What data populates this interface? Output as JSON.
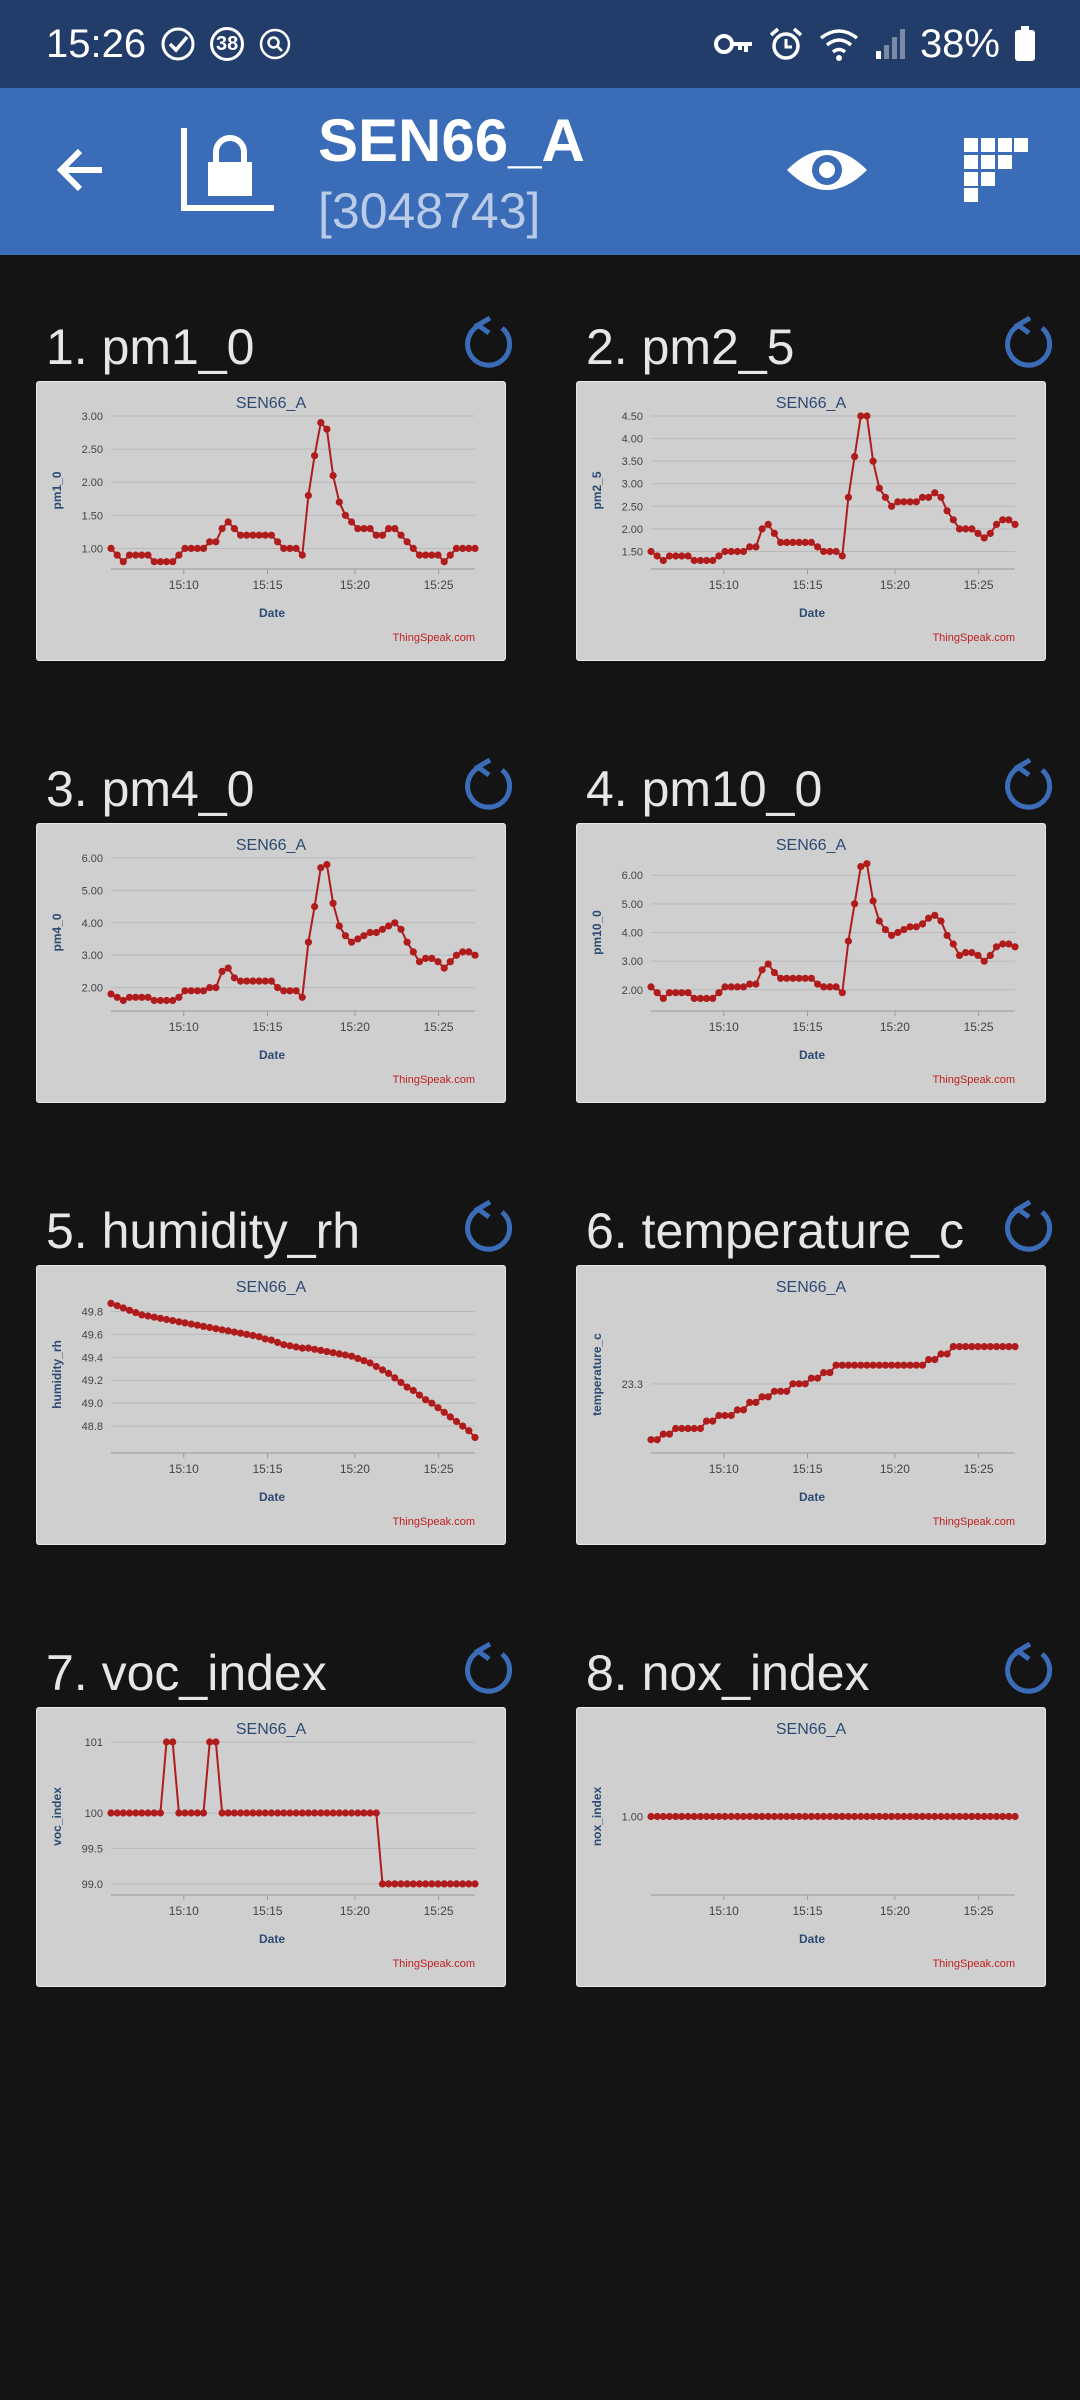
{
  "status_bar": {
    "time": "15:26",
    "notification_count": "38",
    "battery": "38%"
  },
  "app_bar": {
    "title": "SEN66_A",
    "channel_id": "[3048743]"
  },
  "colors": {
    "status_bar": "#233d6b",
    "app_bar": "#3b6cb7",
    "background": "#141414",
    "card": "#cfcfcf",
    "series": "#b01c1c",
    "chart_title": "#2c4a72",
    "credit": "#c02020"
  },
  "panels": [
    {
      "title": "1. pm1_0"
    },
    {
      "title": "2. pm2_5"
    },
    {
      "title": "3. pm4_0"
    },
    {
      "title": "4. pm10_0"
    },
    {
      "title": "5. humidity_rh"
    },
    {
      "title": "6. temperature_c"
    },
    {
      "title": "7. voc_index"
    },
    {
      "title": "8. nox_index"
    }
  ],
  "chart_data": [
    {
      "type": "line",
      "title": "SEN66_A",
      "xlabel": "Date",
      "ylabel": "pm1_0",
      "credit": "ThingSpeak.com",
      "xticks": [
        "15:10",
        "15:15",
        "15:20",
        "15:25"
      ],
      "yticks": [
        "1.00",
        "1.50",
        "2.00",
        "2.50",
        "3.00"
      ],
      "ylim": [
        0.75,
        3.0
      ],
      "values": [
        1.0,
        0.9,
        0.8,
        0.9,
        0.9,
        0.9,
        0.9,
        0.8,
        0.8,
        0.8,
        0.8,
        0.9,
        1.0,
        1.0,
        1.0,
        1.0,
        1.1,
        1.1,
        1.3,
        1.4,
        1.3,
        1.2,
        1.2,
        1.2,
        1.2,
        1.2,
        1.2,
        1.1,
        1.0,
        1.0,
        1.0,
        0.9,
        1.8,
        2.4,
        2.9,
        2.8,
        2.1,
        1.7,
        1.5,
        1.4,
        1.3,
        1.3,
        1.3,
        1.2,
        1.2,
        1.3,
        1.3,
        1.2,
        1.1,
        1.0,
        0.9,
        0.9,
        0.9,
        0.9,
        0.8,
        0.9,
        1.0,
        1.0,
        1.0,
        1.0
      ]
    },
    {
      "type": "line",
      "title": "SEN66_A",
      "xlabel": "Date",
      "ylabel": "pm2_5",
      "credit": "ThingSpeak.com",
      "xticks": [
        "15:10",
        "15:15",
        "15:20",
        "15:25"
      ],
      "yticks": [
        "1.50",
        "2.00",
        "2.50",
        "3.00",
        "3.50",
        "4.00",
        "4.50"
      ],
      "ylim": [
        1.2,
        4.5
      ],
      "values": [
        1.5,
        1.4,
        1.3,
        1.4,
        1.4,
        1.4,
        1.4,
        1.3,
        1.3,
        1.3,
        1.3,
        1.4,
        1.5,
        1.5,
        1.5,
        1.5,
        1.6,
        1.6,
        2.0,
        2.1,
        1.9,
        1.7,
        1.7,
        1.7,
        1.7,
        1.7,
        1.7,
        1.6,
        1.5,
        1.5,
        1.5,
        1.4,
        2.7,
        3.6,
        4.5,
        4.5,
        3.5,
        2.9,
        2.7,
        2.5,
        2.6,
        2.6,
        2.6,
        2.6,
        2.7,
        2.7,
        2.8,
        2.7,
        2.4,
        2.2,
        2.0,
        2.0,
        2.0,
        1.9,
        1.8,
        1.9,
        2.1,
        2.2,
        2.2,
        2.1
      ]
    },
    {
      "type": "line",
      "title": "SEN66_A",
      "xlabel": "Date",
      "ylabel": "pm4_0",
      "credit": "ThingSpeak.com",
      "xticks": [
        "15:10",
        "15:15",
        "15:20",
        "15:25"
      ],
      "yticks": [
        "2.00",
        "3.00",
        "4.00",
        "5.00",
        "6.00"
      ],
      "ylim": [
        1.4,
        6.0
      ],
      "values": [
        1.8,
        1.7,
        1.6,
        1.7,
        1.7,
        1.7,
        1.7,
        1.6,
        1.6,
        1.6,
        1.6,
        1.7,
        1.9,
        1.9,
        1.9,
        1.9,
        2.0,
        2.0,
        2.5,
        2.6,
        2.3,
        2.2,
        2.2,
        2.2,
        2.2,
        2.2,
        2.2,
        2.0,
        1.9,
        1.9,
        1.9,
        1.7,
        3.4,
        4.5,
        5.7,
        5.8,
        4.6,
        3.9,
        3.6,
        3.4,
        3.5,
        3.6,
        3.7,
        3.7,
        3.8,
        3.9,
        4.0,
        3.8,
        3.4,
        3.1,
        2.8,
        2.9,
        2.9,
        2.8,
        2.6,
        2.8,
        3.0,
        3.1,
        3.1,
        3.0
      ]
    },
    {
      "type": "line",
      "title": "SEN66_A",
      "xlabel": "Date",
      "ylabel": "pm10_0",
      "credit": "ThingSpeak.com",
      "xticks": [
        "15:10",
        "15:15",
        "15:20",
        "15:25"
      ],
      "yticks": [
        "2.00",
        "3.00",
        "4.00",
        "5.00",
        "6.00"
      ],
      "ylim": [
        1.4,
        6.6
      ],
      "values": [
        2.1,
        1.9,
        1.7,
        1.9,
        1.9,
        1.9,
        1.9,
        1.7,
        1.7,
        1.7,
        1.7,
        1.9,
        2.1,
        2.1,
        2.1,
        2.1,
        2.2,
        2.2,
        2.7,
        2.9,
        2.6,
        2.4,
        2.4,
        2.4,
        2.4,
        2.4,
        2.4,
        2.2,
        2.1,
        2.1,
        2.1,
        1.9,
        3.7,
        5.0,
        6.3,
        6.4,
        5.1,
        4.4,
        4.1,
        3.9,
        4.0,
        4.1,
        4.2,
        4.2,
        4.3,
        4.5,
        4.6,
        4.4,
        3.9,
        3.6,
        3.2,
        3.3,
        3.3,
        3.2,
        3.0,
        3.2,
        3.5,
        3.6,
        3.6,
        3.5
      ]
    },
    {
      "type": "line",
      "title": "SEN66_A",
      "xlabel": "Date",
      "ylabel": "humidity_rh",
      "credit": "ThingSpeak.com",
      "xticks": [
        "15:10",
        "15:15",
        "15:20",
        "15:25"
      ],
      "yticks": [
        "48.8",
        "49.0",
        "49.2",
        "49.4",
        "49.6",
        "49.8"
      ],
      "ylim": [
        48.6,
        49.9
      ],
      "values": [
        49.87,
        49.85,
        49.83,
        49.81,
        49.79,
        49.77,
        49.76,
        49.75,
        49.74,
        49.73,
        49.72,
        49.71,
        49.7,
        49.69,
        49.68,
        49.67,
        49.66,
        49.65,
        49.64,
        49.63,
        49.62,
        49.61,
        49.6,
        49.59,
        49.58,
        49.56,
        49.55,
        49.53,
        49.51,
        49.5,
        49.49,
        49.48,
        49.48,
        49.47,
        49.46,
        49.45,
        49.44,
        49.43,
        49.42,
        49.41,
        49.39,
        49.37,
        49.35,
        49.32,
        49.29,
        49.26,
        49.22,
        49.18,
        49.14,
        49.11,
        49.07,
        49.03,
        49.0,
        48.96,
        48.92,
        48.88,
        48.84,
        48.8,
        48.76,
        48.7
      ]
    },
    {
      "type": "line",
      "title": "SEN66_A",
      "xlabel": "Date",
      "ylabel": "temperature_c",
      "credit": "ThingSpeak.com",
      "xticks": [
        "15:10",
        "15:15",
        "15:20",
        "15:25"
      ],
      "yticks": [
        "23.3"
      ],
      "ylim": [
        22.95,
        23.75
      ],
      "values": [
        23.0,
        23.0,
        23.03,
        23.03,
        23.06,
        23.06,
        23.06,
        23.06,
        23.06,
        23.1,
        23.1,
        23.13,
        23.13,
        23.13,
        23.16,
        23.16,
        23.2,
        23.2,
        23.23,
        23.23,
        23.26,
        23.26,
        23.26,
        23.3,
        23.3,
        23.3,
        23.33,
        23.33,
        23.36,
        23.36,
        23.4,
        23.4,
        23.4,
        23.4,
        23.4,
        23.4,
        23.4,
        23.4,
        23.4,
        23.4,
        23.4,
        23.4,
        23.4,
        23.4,
        23.4,
        23.43,
        23.43,
        23.46,
        23.46,
        23.5,
        23.5,
        23.5,
        23.5,
        23.5,
        23.5,
        23.5,
        23.5,
        23.5,
        23.5,
        23.5
      ]
    },
    {
      "type": "line",
      "title": "SEN66_A",
      "xlabel": "Date",
      "ylabel": "voc_index",
      "credit": "ThingSpeak.com",
      "xticks": [
        "15:10",
        "15:15",
        "15:20",
        "15:25"
      ],
      "yticks": [
        "99.0",
        "99.5",
        "100",
        "101"
      ],
      "ylim": [
        98.9,
        101.0
      ],
      "values": [
        100,
        100,
        100,
        100,
        100,
        100,
        100,
        100,
        100,
        101,
        101,
        100,
        100,
        100,
        100,
        100,
        101,
        101,
        100,
        100,
        100,
        100,
        100,
        100,
        100,
        100,
        100,
        100,
        100,
        100,
        100,
        100,
        100,
        100,
        100,
        100,
        100,
        100,
        100,
        100,
        100,
        100,
        100,
        100,
        99,
        99,
        99,
        99,
        99,
        99,
        99,
        99,
        99,
        99,
        99,
        99,
        99,
        99,
        99,
        99
      ]
    },
    {
      "type": "line",
      "title": "SEN66_A",
      "xlabel": "Date",
      "ylabel": "nox_index",
      "credit": "ThingSpeak.com",
      "xticks": [
        "15:10",
        "15:15",
        "15:20",
        "15:25"
      ],
      "yticks": [
        "1.00"
      ],
      "ylim": [
        0.0,
        2.0
      ],
      "values": [
        1,
        1,
        1,
        1,
        1,
        1,
        1,
        1,
        1,
        1,
        1,
        1,
        1,
        1,
        1,
        1,
        1,
        1,
        1,
        1,
        1,
        1,
        1,
        1,
        1,
        1,
        1,
        1,
        1,
        1,
        1,
        1,
        1,
        1,
        1,
        1,
        1,
        1,
        1,
        1,
        1,
        1,
        1,
        1,
        1,
        1,
        1,
        1,
        1,
        1,
        1,
        1,
        1,
        1,
        1,
        1,
        1,
        1,
        1,
        1
      ]
    }
  ]
}
